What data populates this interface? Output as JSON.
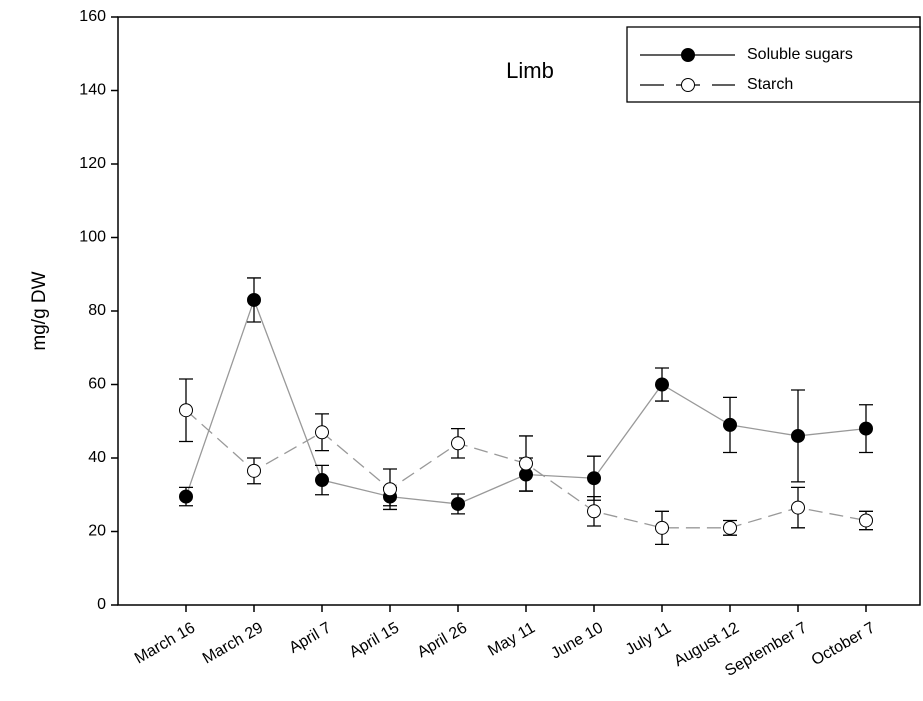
{
  "chart_data": {
    "type": "line",
    "annotation": "Limb",
    "ylabel": "mg/g DW",
    "categories": [
      "March 16",
      "March 29",
      "April 7",
      "April 15",
      "April 26",
      "May 11",
      "June 10",
      "July 11",
      "August 12",
      "September 7",
      "October 7"
    ],
    "series": [
      {
        "name": "Soluble sugars",
        "color": "#000000",
        "marker": "filled",
        "line_style": "solid",
        "values": [
          29.5,
          83,
          34,
          29.5,
          27.5,
          35.5,
          34.5,
          60,
          49,
          46,
          48
        ],
        "errors": [
          2.5,
          6,
          4,
          2.5,
          2.7,
          4.5,
          6,
          4.5,
          7.5,
          12.5,
          6.5
        ]
      },
      {
        "name": "Starch",
        "color": "#000000",
        "marker": "open",
        "line_style": "dashed",
        "values": [
          53,
          36.5,
          47,
          31.5,
          44,
          38.5,
          25.5,
          21,
          21,
          26.5,
          23
        ],
        "errors": [
          8.5,
          3.5,
          5,
          5.5,
          4,
          7.5,
          4,
          4.5,
          2,
          5.5,
          2.5
        ]
      }
    ],
    "ylim": [
      0,
      160
    ],
    "yticks": [
      0,
      20,
      40,
      60,
      80,
      100,
      120,
      140,
      160
    ],
    "legend": "upper right"
  }
}
